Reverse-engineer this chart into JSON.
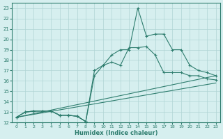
{
  "xlabel": "Humidex (Indice chaleur)",
  "ylabel": "",
  "bg_color": "#d6efef",
  "line_color": "#2e7d6e",
  "grid_color": "#b0d4d4",
  "xlim": [
    -0.5,
    23.5
  ],
  "ylim": [
    12,
    23.5
  ],
  "yticks": [
    12,
    13,
    14,
    15,
    16,
    17,
    18,
    19,
    20,
    21,
    22,
    23
  ],
  "xticks": [
    0,
    1,
    2,
    3,
    4,
    5,
    6,
    7,
    8,
    9,
    10,
    11,
    12,
    13,
    14,
    15,
    16,
    17,
    18,
    19,
    20,
    21,
    22,
    23
  ],
  "line1_x": [
    0,
    1,
    2,
    3,
    4,
    5,
    6,
    7,
    8
  ],
  "line1_y": [
    12.5,
    13.0,
    13.1,
    13.1,
    13.1,
    12.7,
    12.7,
    12.6,
    12.1
  ],
  "line2_x": [
    0,
    1,
    2,
    3,
    4,
    5,
    6,
    7,
    8,
    9,
    10,
    11,
    12,
    13,
    14,
    15,
    16,
    17,
    18,
    19,
    20,
    21,
    22,
    23
  ],
  "line2_y": [
    12.5,
    13.0,
    13.1,
    13.1,
    13.1,
    12.7,
    12.7,
    12.6,
    12.1,
    16.5,
    17.5,
    18.5,
    19.0,
    19.0,
    23.0,
    20.3,
    20.5,
    20.5,
    19.0,
    19.0,
    17.5,
    17.0,
    16.8,
    16.5
  ],
  "line3_x": [
    0,
    1,
    2,
    3,
    4,
    5,
    6,
    7,
    8,
    9,
    10,
    11,
    12,
    13,
    14,
    15,
    16,
    17,
    18,
    19,
    20,
    21,
    22,
    23
  ],
  "line3_y": [
    12.5,
    13.0,
    13.1,
    13.1,
    13.1,
    12.7,
    12.7,
    12.6,
    12.1,
    17.0,
    17.5,
    17.8,
    17.5,
    19.2,
    19.2,
    19.3,
    18.5,
    16.8,
    16.8,
    16.8,
    16.5,
    16.5,
    16.2,
    16.1
  ],
  "line4_x": [
    0,
    23
  ],
  "line4_y": [
    12.5,
    16.5
  ],
  "line5_x": [
    0,
    23
  ],
  "line5_y": [
    12.5,
    15.8
  ]
}
